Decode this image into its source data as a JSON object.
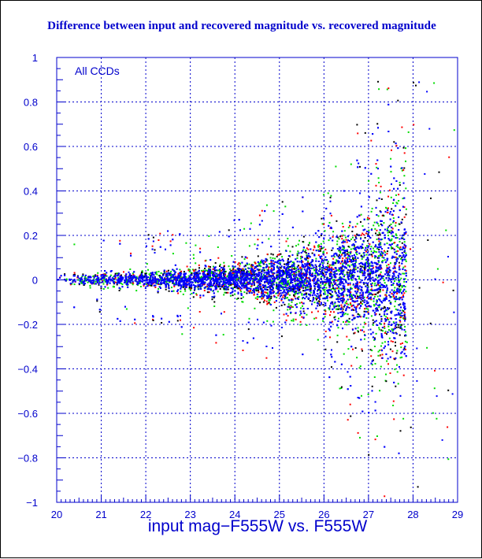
{
  "chart_data": {
    "type": "scatter",
    "title": "Difference between input and recovered magnitude vs. recovered magnitude",
    "xlabel": "input mag−F555W vs. F555W",
    "ylabel": "",
    "annotation": "All CCDs",
    "xlim": [
      20,
      29
    ],
    "ylim": [
      -1,
      1
    ],
    "x_ticks": [
      20,
      21,
      22,
      23,
      24,
      25,
      26,
      27,
      28,
      29
    ],
    "y_ticks": [
      -1,
      -0.8,
      -0.6,
      -0.4,
      -0.2,
      0,
      0.2,
      0.4,
      0.6,
      0.8,
      1
    ],
    "x_tick_labels": [
      "20",
      "21",
      "22",
      "23",
      "24",
      "25",
      "26",
      "27",
      "28",
      "29"
    ],
    "y_tick_labels": [
      "−1",
      "−0.8",
      "−0.6",
      "−0.4",
      "−0.2",
      "0",
      "0.2",
      "0.4",
      "0.6",
      "0.8",
      "1"
    ],
    "grid": true,
    "magnitude_cutoff": 27.85,
    "series": [
      {
        "color": "#0000ff",
        "x_range": [
          20,
          27.85
        ],
        "y_center": 0,
        "spread_sigma": [
          [
            20,
            0.012
          ],
          [
            22,
            0.015
          ],
          [
            24,
            0.03
          ],
          [
            25,
            0.045
          ],
          [
            26,
            0.075
          ],
          [
            27,
            0.12
          ],
          [
            27.5,
            0.17
          ],
          [
            27.85,
            0.19
          ]
        ]
      },
      {
        "color": "#00dd00",
        "x_range": [
          20,
          27.85
        ],
        "y_center": 0,
        "spread_sigma": [
          [
            20,
            0.015
          ],
          [
            22,
            0.02
          ],
          [
            24,
            0.04
          ],
          [
            25,
            0.06
          ],
          [
            26,
            0.1
          ],
          [
            27,
            0.16
          ],
          [
            27.5,
            0.22
          ],
          [
            27.85,
            0.25
          ]
        ]
      },
      {
        "color": "#ff0000",
        "x_range": [
          20,
          27.85
        ],
        "y_center": 0,
        "spread_sigma": [
          [
            20,
            0.015
          ],
          [
            22,
            0.02
          ],
          [
            24,
            0.04
          ],
          [
            25,
            0.06
          ],
          [
            26,
            0.1
          ],
          [
            27,
            0.17
          ],
          [
            27.5,
            0.23
          ],
          [
            27.85,
            0.26
          ]
        ]
      },
      {
        "color": "#000000",
        "x_range": [
          20,
          27.85
        ],
        "y_center": 0,
        "spread_sigma": [
          [
            20,
            0.015
          ],
          [
            22,
            0.02
          ],
          [
            24,
            0.04
          ],
          [
            25,
            0.06
          ],
          [
            26,
            0.1
          ],
          [
            27,
            0.17
          ],
          [
            27.5,
            0.23
          ],
          [
            27.85,
            0.26
          ]
        ]
      }
    ],
    "colors": {
      "axis": "#0000cc",
      "grid": "#0000cc",
      "labels": "#0000cc",
      "title": "#0000cc"
    }
  }
}
